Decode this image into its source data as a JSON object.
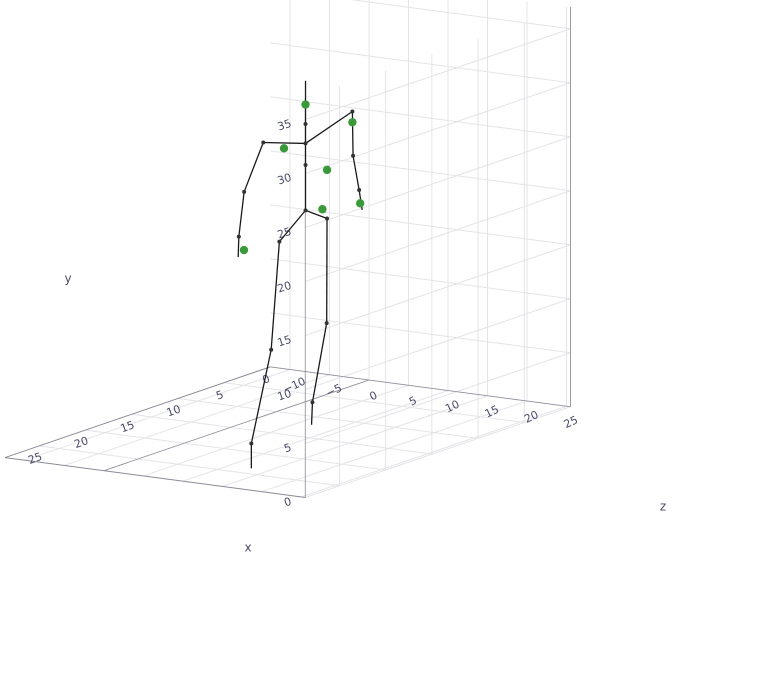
{
  "chart_data": {
    "type": "scatter",
    "projection": "3d",
    "axes": {
      "x": {
        "label": "x",
        "ticks": [
          "0",
          "5",
          "10",
          "15",
          "20",
          "25"
        ]
      },
      "y": {
        "label": "y",
        "ticks": [
          "0",
          "5",
          "10",
          "15",
          "20",
          "25",
          "30",
          "35"
        ]
      },
      "z": {
        "label": "z",
        "ticks": [
          "−10",
          "−5",
          "0",
          "5",
          "10",
          "15",
          "20",
          "25"
        ]
      }
    },
    "grid": true,
    "colors": {
      "bones": "#1a1a1a",
      "joints": "#333333",
      "markers": "#3a9a3a",
      "grid": "#e4e4e8",
      "axis_text": "#4a4a6a"
    },
    "skeleton": {
      "joints": [
        {
          "id": "head_top",
          "x": 12.0,
          "y": 31.8,
          "z": 6.0
        },
        {
          "id": "head",
          "x": 12.0,
          "y": 29.6,
          "z": 6.0
        },
        {
          "id": "neck",
          "x": 12.0,
          "y": 27.8,
          "z": 6.0
        },
        {
          "id": "chest",
          "x": 12.0,
          "y": 26.0,
          "z": 6.0
        },
        {
          "id": "spine",
          "x": 12.0,
          "y": 24.0,
          "z": 6.0
        },
        {
          "id": "pelvis",
          "x": 12.0,
          "y": 19.8,
          "z": 6.0
        },
        {
          "id": "l_shoulder",
          "x": 17.0,
          "y": 27.6,
          "z": 6.5
        },
        {
          "id": "l_elbow",
          "x": 19.5,
          "y": 23.8,
          "z": 7.0
        },
        {
          "id": "l_wrist",
          "x": 20.5,
          "y": 20.0,
          "z": 7.5
        },
        {
          "id": "l_hand",
          "x": 21.0,
          "y": 18.3,
          "z": 8.0
        },
        {
          "id": "r_shoulder",
          "x": 6.5,
          "y": 27.3,
          "z": 5.5
        },
        {
          "id": "r_elbow",
          "x": 6.0,
          "y": 23.0,
          "z": 5.0
        },
        {
          "id": "r_wrist",
          "x": 5.0,
          "y": 19.5,
          "z": 4.6
        },
        {
          "id": "r_hand",
          "x": 4.5,
          "y": 17.5,
          "z": 4.4
        },
        {
          "id": "l_hip",
          "x": 15.0,
          "y": 17.8,
          "z": 6.2
        },
        {
          "id": "l_knee",
          "x": 17.0,
          "y": 8.5,
          "z": 7.5
        },
        {
          "id": "l_ankle",
          "x": 20.0,
          "y": 0.8,
          "z": 8.5
        },
        {
          "id": "l_foot",
          "x": 20.0,
          "y": -1.5,
          "z": 8.5
        },
        {
          "id": "r_hip",
          "x": 9.5,
          "y": 18.3,
          "z": 5.8
        },
        {
          "id": "r_knee",
          "x": 8.0,
          "y": 8.0,
          "z": 4.0
        },
        {
          "id": "r_ankle",
          "x": 8.0,
          "y": 0.5,
          "z": 2.2
        },
        {
          "id": "r_foot",
          "x": 7.5,
          "y": -1.8,
          "z": 1.5
        }
      ],
      "bones": [
        [
          "head_top",
          "head"
        ],
        [
          "head",
          "neck"
        ],
        [
          "neck",
          "chest"
        ],
        [
          "chest",
          "spine"
        ],
        [
          "spine",
          "pelvis"
        ],
        [
          "chest",
          "l_shoulder"
        ],
        [
          "l_shoulder",
          "l_elbow"
        ],
        [
          "l_elbow",
          "l_wrist"
        ],
        [
          "l_wrist",
          "l_hand"
        ],
        [
          "chest",
          "r_shoulder"
        ],
        [
          "r_shoulder",
          "r_elbow"
        ],
        [
          "r_elbow",
          "r_wrist"
        ],
        [
          "r_wrist",
          "r_hand"
        ],
        [
          "pelvis",
          "l_hip"
        ],
        [
          "l_hip",
          "l_knee"
        ],
        [
          "l_knee",
          "l_ankle"
        ],
        [
          "l_ankle",
          "l_foot"
        ],
        [
          "pelvis",
          "r_hip"
        ],
        [
          "r_hip",
          "r_knee"
        ],
        [
          "r_knee",
          "r_ankle"
        ],
        [
          "r_ankle",
          "r_foot"
        ]
      ]
    },
    "markers": [
      {
        "id": "m1",
        "x": 12.0,
        "y": 29.6,
        "z": 6.0
      },
      {
        "id": "m2",
        "x": 14.5,
        "y": 26.3,
        "z": 6.2
      },
      {
        "id": "m3",
        "x": 6.5,
        "y": 26.3,
        "z": 5.5
      },
      {
        "id": "m4",
        "x": 9.5,
        "y": 22.8,
        "z": 5.8
      },
      {
        "id": "m5",
        "x": 10.0,
        "y": 19.3,
        "z": 5.8
      },
      {
        "id": "m6",
        "x": 4.8,
        "y": 18.2,
        "z": 4.5
      },
      {
        "id": "m7",
        "x": 20.2,
        "y": 18.7,
        "z": 7.8
      }
    ]
  }
}
